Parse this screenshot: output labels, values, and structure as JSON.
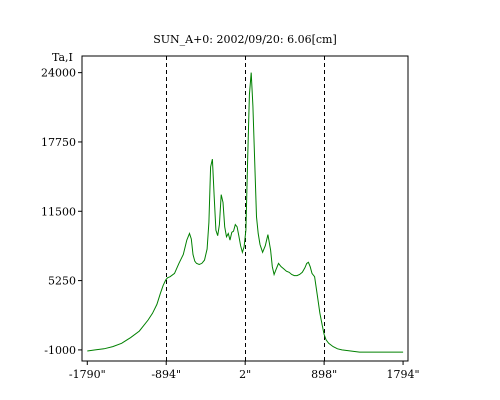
{
  "chart_data": {
    "type": "line",
    "title": "SUN_A+0: 2002/09/20: 6.06[cm]",
    "ylabel": "Ta,I",
    "xlabel": "",
    "x_ticks": [
      -1790,
      -894,
      2,
      898,
      1794
    ],
    "x_tick_labels": [
      "-1790\"",
      "-894\"",
      "2\"",
      "898\"",
      "1794\""
    ],
    "y_ticks": [
      -1000,
      5250,
      11500,
      17750,
      24000
    ],
    "y_tick_labels": [
      "-1000",
      "5250",
      "11500",
      "17750",
      "24000"
    ],
    "xlim": [
      -1850,
      1850
    ],
    "ylim": [
      -2000,
      25500
    ],
    "vlines": [
      -894,
      2,
      898
    ],
    "grid": false,
    "legend": "none",
    "colors": {
      "line": "#008000",
      "vline": "#000000",
      "frame": "#000000"
    },
    "series": [
      {
        "x": [
          -1790,
          -1700,
          -1600,
          -1500,
          -1400,
          -1300,
          -1200,
          -1100,
          -1050,
          -1000,
          -960,
          -930,
          -900,
          -880,
          -850,
          -800,
          -750,
          -700,
          -660,
          -630,
          -610,
          -590,
          -570,
          -550,
          -520,
          -490,
          -460,
          -430,
          -410,
          -390,
          -370,
          -350,
          -330,
          -310,
          -290,
          -270,
          -250,
          -230,
          -210,
          -190,
          -170,
          -150,
          -130,
          -110,
          -90,
          -70,
          -50,
          -30,
          -10,
          10,
          30,
          50,
          70,
          90,
          110,
          130,
          150,
          170,
          200,
          230,
          260,
          290,
          310,
          330,
          350,
          380,
          410,
          440,
          470,
          500,
          530,
          560,
          590,
          620,
          650,
          680,
          700,
          720,
          740,
          760,
          790,
          820,
          850,
          880,
          898,
          920,
          950,
          1000,
          1050,
          1100,
          1200,
          1300,
          1400,
          1500,
          1600,
          1700,
          1794
        ],
        "y": [
          -1100,
          -1000,
          -900,
          -700,
          -400,
          100,
          700,
          1700,
          2300,
          3100,
          4100,
          4800,
          5300,
          5500,
          5600,
          5900,
          6800,
          7600,
          8900,
          9500,
          9000,
          7600,
          7000,
          6800,
          6700,
          6800,
          7100,
          8100,
          10500,
          15500,
          16200,
          12800,
          9800,
          9300,
          10300,
          13000,
          12300,
          10100,
          9200,
          9500,
          8900,
          9600,
          9700,
          10300,
          10100,
          9300,
          8400,
          7800,
          8300,
          9800,
          16000,
          22000,
          24000,
          21000,
          16000,
          11000,
          9500,
          8500,
          7800,
          8400,
          9400,
          8000,
          6500,
          5800,
          6200,
          6800,
          6500,
          6300,
          6100,
          6000,
          5800,
          5700,
          5700,
          5800,
          6000,
          6400,
          6800,
          6900,
          6500,
          5900,
          5600,
          4000,
          2300,
          1100,
          400,
          -100,
          -400,
          -700,
          -900,
          -1000,
          -1100,
          -1200,
          -1200,
          -1200,
          -1200,
          -1200,
          -1200
        ]
      }
    ]
  }
}
